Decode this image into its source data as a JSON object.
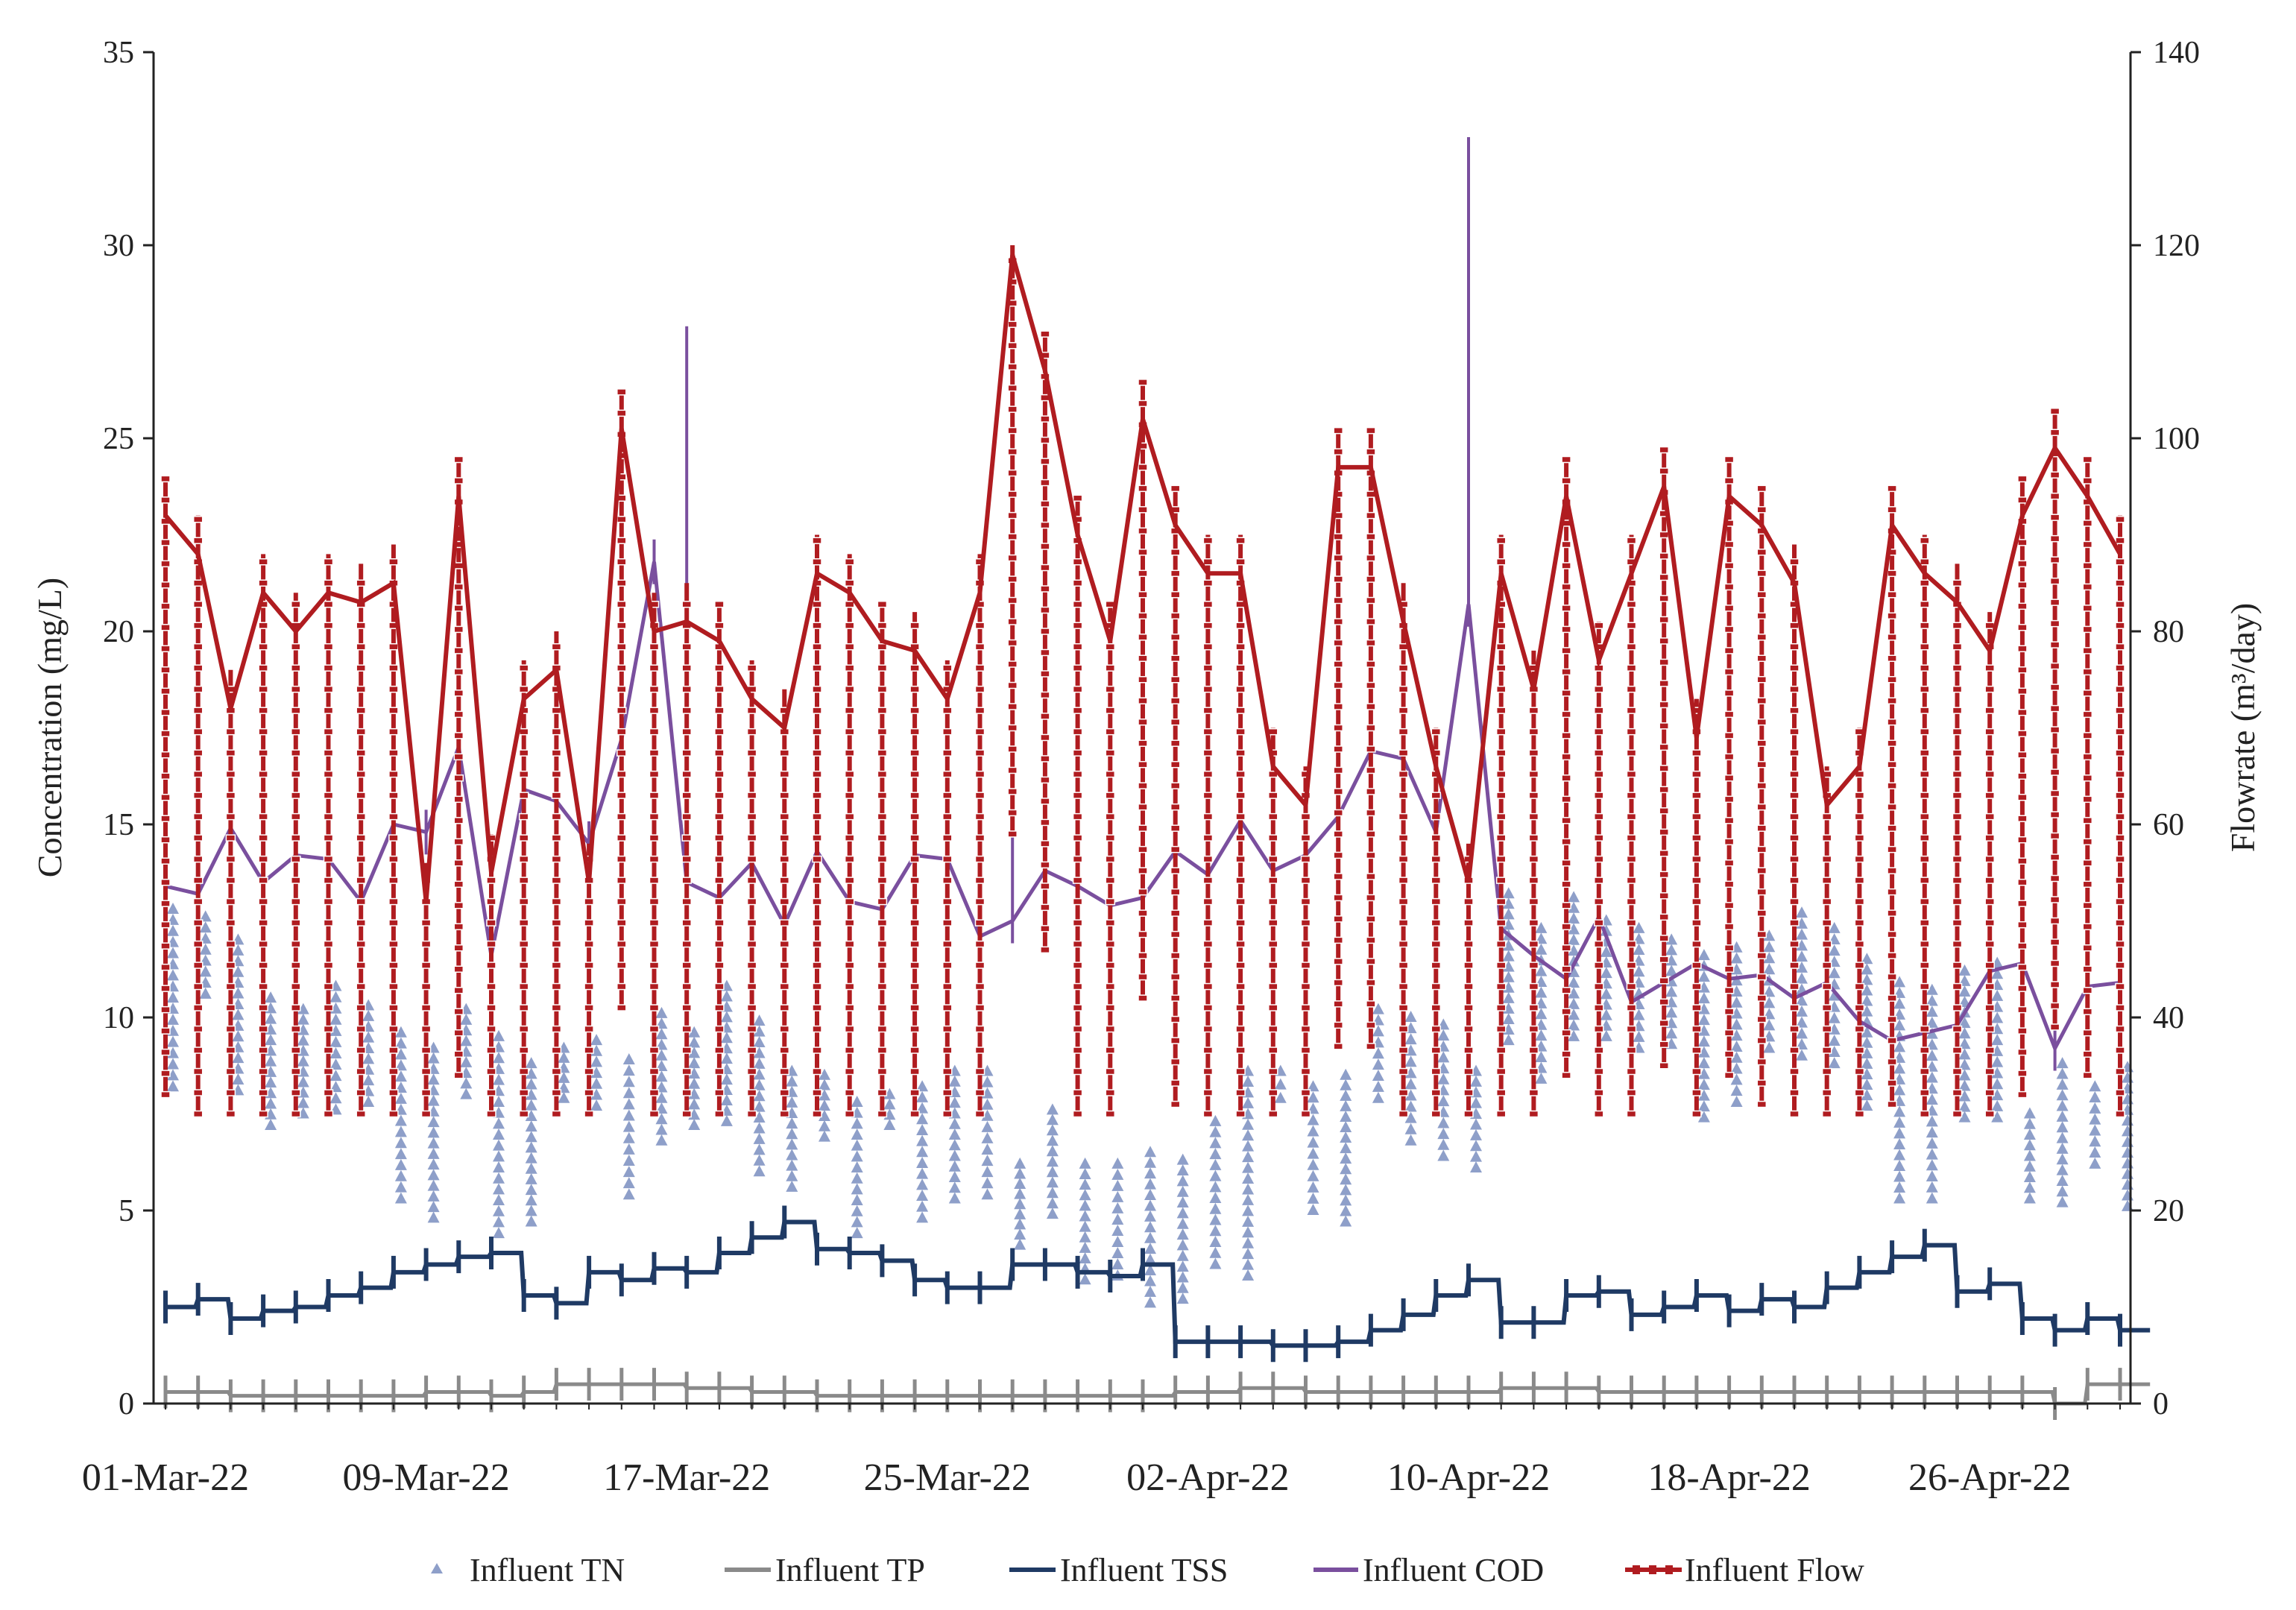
{
  "chart_data": {
    "type": "line",
    "y_left_label": "Concentration (mg/L)",
    "y_right_label": "Flowrate (m³/day)",
    "y_left_range": [
      0,
      35
    ],
    "y_left_ticks": [
      "0",
      "5",
      "10",
      "15",
      "20",
      "25",
      "30",
      "35"
    ],
    "y_right_range": [
      0,
      140
    ],
    "y_right_ticks": [
      "0",
      "20",
      "40",
      "60",
      "80",
      "100",
      "120",
      "140"
    ],
    "x_tick_labels": [
      "01-Mar-22",
      "09-Mar-22",
      "17-Mar-22",
      "25-Mar-22",
      "02-Apr-22",
      "10-Apr-22",
      "18-Apr-22",
      "26-Apr-22"
    ],
    "x_start_date": "2022-03-01",
    "x_day_count": 61,
    "grid": false,
    "legend_position": "bottom",
    "series": [
      {
        "name": "Influent TN",
        "axis": "left",
        "style": "triangle-markers",
        "color": "#8e9fc9",
        "daily_ranges": [
          [
            8.2,
            12.8
          ],
          [
            10.6,
            12.6
          ],
          [
            8.1,
            12.0
          ],
          [
            7.2,
            10.5
          ],
          [
            7.5,
            10.2
          ],
          [
            7.6,
            10.8
          ],
          [
            7.8,
            10.3
          ],
          [
            5.3,
            9.6
          ],
          [
            4.8,
            9.2
          ],
          [
            8.0,
            10.2
          ],
          [
            4.4,
            9.5
          ],
          [
            4.7,
            8.8
          ],
          [
            7.9,
            9.2
          ],
          [
            7.7,
            9.4
          ],
          [
            5.4,
            8.9
          ],
          [
            6.8,
            10.1
          ],
          [
            7.2,
            9.6
          ],
          [
            7.3,
            10.8
          ],
          [
            6.0,
            9.9
          ],
          [
            5.6,
            8.6
          ],
          [
            6.9,
            8.5
          ],
          [
            4.4,
            7.8
          ],
          [
            7.2,
            8.0
          ],
          [
            4.8,
            8.2
          ],
          [
            5.3,
            8.6
          ],
          [
            5.4,
            8.6
          ],
          [
            4.1,
            6.2
          ],
          [
            4.9,
            7.6
          ],
          [
            3.2,
            6.2
          ],
          [
            3.3,
            6.2
          ],
          [
            2.6,
            6.5
          ],
          [
            2.7,
            6.3
          ],
          [
            3.6,
            7.3
          ],
          [
            3.3,
            8.6
          ],
          [
            7.9,
            8.6
          ],
          [
            5.0,
            8.2
          ],
          [
            4.7,
            8.5
          ],
          [
            7.9,
            10.2
          ],
          [
            6.8,
            10.0
          ],
          [
            6.4,
            9.8
          ],
          [
            6.1,
            8.6
          ],
          [
            9.4,
            13.2
          ],
          [
            8.4,
            12.3
          ],
          [
            9.5,
            13.1
          ],
          [
            9.5,
            12.5
          ],
          [
            9.2,
            12.3
          ],
          [
            9.3,
            12.0
          ],
          [
            7.4,
            11.6
          ],
          [
            7.8,
            11.8
          ],
          [
            9.2,
            12.1
          ],
          [
            9.0,
            12.7
          ],
          [
            8.8,
            12.3
          ],
          [
            7.7,
            11.5
          ],
          [
            5.3,
            10.9
          ],
          [
            5.3,
            10.7
          ],
          [
            7.4,
            11.2
          ],
          [
            7.4,
            11.4
          ],
          [
            5.3,
            7.5
          ],
          [
            5.2,
            8.8
          ],
          [
            6.2,
            8.2
          ],
          [
            5.1,
            8.7
          ]
        ]
      },
      {
        "name": "Influent TP",
        "axis": "left",
        "style": "step-line",
        "color": "#8a8a8a",
        "values": [
          0.3,
          0.3,
          0.2,
          0.2,
          0.2,
          0.2,
          0.2,
          0.2,
          0.3,
          0.3,
          0.2,
          0.3,
          0.5,
          0.5,
          0.5,
          0.5,
          0.4,
          0.4,
          0.3,
          0.3,
          0.2,
          0.2,
          0.2,
          0.2,
          0.2,
          0.2,
          0.2,
          0.2,
          0.2,
          0.2,
          0.2,
          0.3,
          0.3,
          0.4,
          0.4,
          0.3,
          0.3,
          0.3,
          0.3,
          0.3,
          0.3,
          0.4,
          0.4,
          0.4,
          0.3,
          0.3,
          0.3,
          0.3,
          0.3,
          0.3,
          0.3,
          0.3,
          0.3,
          0.3,
          0.3,
          0.3,
          0.3,
          0.3,
          0.0,
          0.5,
          0.5
        ]
      },
      {
        "name": "Influent TSS",
        "axis": "left",
        "style": "step-line",
        "color": "#1f3a64",
        "values": [
          2.5,
          2.7,
          2.2,
          2.4,
          2.5,
          2.8,
          3.0,
          3.4,
          3.6,
          3.8,
          3.9,
          2.8,
          2.6,
          3.4,
          3.2,
          3.5,
          3.4,
          3.9,
          4.3,
          4.7,
          4.0,
          3.9,
          3.7,
          3.2,
          3.0,
          3.0,
          3.6,
          3.6,
          3.4,
          3.3,
          3.6,
          1.6,
          1.6,
          1.6,
          1.5,
          1.5,
          1.6,
          1.9,
          2.3,
          2.8,
          3.2,
          2.1,
          2.1,
          2.8,
          2.9,
          2.3,
          2.5,
          2.8,
          2.4,
          2.7,
          2.5,
          3.0,
          3.4,
          3.8,
          4.1,
          2.9,
          3.1,
          2.2,
          1.9,
          2.2,
          1.9
        ]
      },
      {
        "name": "Influent COD",
        "axis": "left",
        "style": "line-with-range",
        "color": "#7a4f9e",
        "values": [
          13.4,
          13.2,
          14.9,
          13.5,
          14.2,
          14.1,
          13.0,
          15.0,
          14.8,
          17.0,
          11.6,
          15.9,
          15.6,
          14.5,
          17.2,
          21.8,
          13.5,
          13.1,
          14.0,
          12.4,
          14.3,
          13.0,
          12.8,
          14.2,
          14.1,
          12.1,
          12.5,
          13.8,
          13.4,
          12.9,
          13.1,
          14.3,
          13.7,
          15.1,
          13.8,
          14.2,
          15.2,
          16.9,
          16.7,
          14.8,
          20.7,
          12.3,
          11.6,
          11.0,
          12.6,
          10.4,
          10.9,
          11.4,
          11.0,
          11.1,
          10.5,
          10.9,
          9.9,
          9.4,
          9.6,
          9.8,
          11.2,
          11.4,
          9.2,
          10.8,
          10.9
        ],
        "range_highs": [
          null,
          null,
          null,
          null,
          null,
          null,
          null,
          null,
          null,
          null,
          null,
          null,
          null,
          null,
          null,
          null,
          27.9,
          null,
          null,
          15.0,
          null,
          null,
          null,
          null,
          null,
          null,
          15.2,
          null,
          null,
          null,
          null,
          null,
          null,
          null,
          null,
          null,
          null,
          null,
          null,
          null,
          32.8,
          null,
          null,
          null,
          null,
          null,
          null,
          null,
          null,
          null,
          null,
          null,
          12.5,
          null,
          null,
          13.4,
          null,
          null,
          null,
          null,
          null
        ]
      },
      {
        "name": "Influent Flow",
        "axis": "right",
        "style": "line-with-square-markers",
        "color": "#b01c20",
        "values": [
          92,
          88,
          72,
          84,
          80,
          84,
          83,
          85,
          52,
          94,
          55,
          73,
          76,
          54,
          101,
          80,
          81,
          79,
          73,
          70,
          86,
          84,
          79,
          78,
          73,
          84,
          119,
          107,
          90,
          79,
          102,
          91,
          86,
          86,
          66,
          62,
          97,
          97,
          81,
          66,
          54,
          86,
          74,
          94,
          77,
          86,
          95,
          69,
          94,
          91,
          85,
          62,
          66,
          91,
          86,
          83,
          78,
          92,
          99,
          94,
          88
        ]
      }
    ]
  },
  "legend": [
    {
      "label": "Influent TN"
    },
    {
      "label": "Influent TP"
    },
    {
      "label": "Influent TSS"
    },
    {
      "label": "Influent COD"
    },
    {
      "label": "Influent Flow"
    }
  ]
}
